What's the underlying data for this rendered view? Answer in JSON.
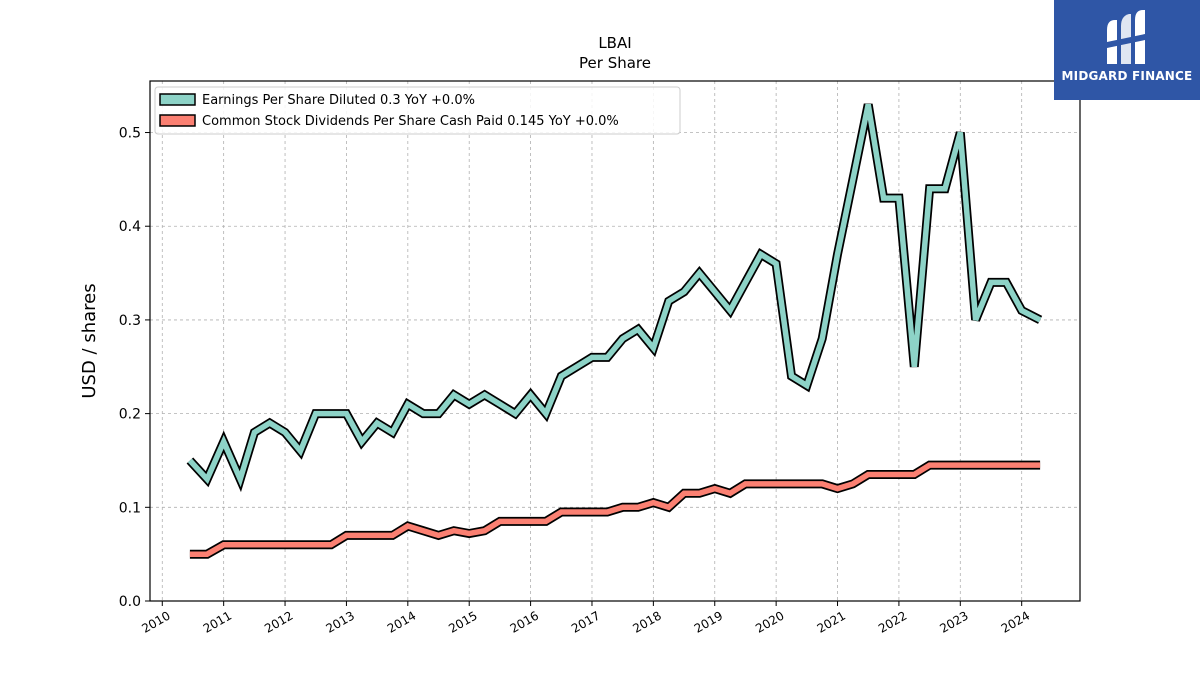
{
  "brand": {
    "name": "MIDGARD FINANCE",
    "bg": "#2f56a6",
    "icon": "midgard-logo-icon"
  },
  "chart_data": {
    "type": "line",
    "title": "LBAI",
    "subtitle": "Per  Share",
    "ylabel": "USD / shares",
    "xlabel": "",
    "xlim": [
      2009.8,
      2024.95
    ],
    "ylim": [
      0,
      0.555
    ],
    "yticks": [
      0.0,
      0.1,
      0.2,
      0.3,
      0.4,
      0.5
    ],
    "ytick_labels": [
      "0.0",
      "0.1",
      "0.2",
      "0.3",
      "0.4",
      "0.5"
    ],
    "xticks": [
      2010,
      2011,
      2012,
      2013,
      2014,
      2015,
      2016,
      2017,
      2018,
      2019,
      2020,
      2021,
      2022,
      2023,
      2024
    ],
    "xtick_labels": [
      "2010",
      "2011",
      "2012",
      "2013",
      "2014",
      "2015",
      "2016",
      "2017",
      "2018",
      "2019",
      "2020",
      "2021",
      "2022",
      "2023",
      "2024"
    ],
    "grid": true,
    "legend_position": "top-left",
    "series": [
      {
        "name": "Earnings Per Share Diluted  0.3 YoY +0.0%",
        "color": "#8dd3c7",
        "points": [
          [
            2010.45,
            0.15
          ],
          [
            2010.73,
            0.13
          ],
          [
            2011.0,
            0.17
          ],
          [
            2011.27,
            0.13
          ],
          [
            2011.5,
            0.18
          ],
          [
            2011.75,
            0.19
          ],
          [
            2012.0,
            0.18
          ],
          [
            2012.25,
            0.16
          ],
          [
            2012.5,
            0.2
          ],
          [
            2012.75,
            0.2
          ],
          [
            2013.0,
            0.2
          ],
          [
            2013.25,
            0.17
          ],
          [
            2013.5,
            0.19
          ],
          [
            2013.75,
            0.18
          ],
          [
            2014.0,
            0.21
          ],
          [
            2014.25,
            0.2
          ],
          [
            2014.5,
            0.2
          ],
          [
            2014.75,
            0.22
          ],
          [
            2015.0,
            0.21
          ],
          [
            2015.25,
            0.22
          ],
          [
            2015.5,
            0.21
          ],
          [
            2015.75,
            0.2
          ],
          [
            2016.0,
            0.22
          ],
          [
            2016.25,
            0.2
          ],
          [
            2016.5,
            0.24
          ],
          [
            2016.75,
            0.25
          ],
          [
            2017.0,
            0.26
          ],
          [
            2017.25,
            0.26
          ],
          [
            2017.5,
            0.28
          ],
          [
            2017.75,
            0.29
          ],
          [
            2018.0,
            0.27
          ],
          [
            2018.25,
            0.32
          ],
          [
            2018.5,
            0.33
          ],
          [
            2018.75,
            0.35
          ],
          [
            2019.0,
            0.33
          ],
          [
            2019.25,
            0.31
          ],
          [
            2019.5,
            0.34
          ],
          [
            2019.75,
            0.37
          ],
          [
            2020.0,
            0.36
          ],
          [
            2020.25,
            0.24
          ],
          [
            2020.5,
            0.23
          ],
          [
            2020.75,
            0.28
          ],
          [
            2021.0,
            0.37
          ],
          [
            2021.25,
            0.45
          ],
          [
            2021.5,
            0.53
          ],
          [
            2021.75,
            0.43
          ],
          [
            2022.0,
            0.43
          ],
          [
            2022.25,
            0.25
          ],
          [
            2022.5,
            0.44
          ],
          [
            2022.75,
            0.44
          ],
          [
            2023.0,
            0.5
          ],
          [
            2023.25,
            0.3
          ],
          [
            2023.5,
            0.34
          ],
          [
            2023.75,
            0.34
          ],
          [
            2024.0,
            0.31
          ],
          [
            2024.3,
            0.3
          ]
        ]
      },
      {
        "name": "Common Stock Dividends Per Share Cash Paid  0.145 YoY +0.0%",
        "color": "#fb8072",
        "points": [
          [
            2010.45,
            0.05
          ],
          [
            2010.73,
            0.05
          ],
          [
            2011.0,
            0.06
          ],
          [
            2011.25,
            0.06
          ],
          [
            2011.5,
            0.06
          ],
          [
            2011.75,
            0.06
          ],
          [
            2012.0,
            0.06
          ],
          [
            2012.25,
            0.06
          ],
          [
            2012.5,
            0.06
          ],
          [
            2012.75,
            0.06
          ],
          [
            2013.0,
            0.07
          ],
          [
            2013.25,
            0.07
          ],
          [
            2013.5,
            0.07
          ],
          [
            2013.75,
            0.07
          ],
          [
            2014.0,
            0.08
          ],
          [
            2014.25,
            0.075
          ],
          [
            2014.5,
            0.07
          ],
          [
            2014.75,
            0.075
          ],
          [
            2015.0,
            0.072
          ],
          [
            2015.25,
            0.075
          ],
          [
            2015.5,
            0.085
          ],
          [
            2015.75,
            0.085
          ],
          [
            2016.0,
            0.085
          ],
          [
            2016.25,
            0.085
          ],
          [
            2016.5,
            0.095
          ],
          [
            2016.75,
            0.095
          ],
          [
            2017.0,
            0.095
          ],
          [
            2017.25,
            0.095
          ],
          [
            2017.5,
            0.1
          ],
          [
            2017.75,
            0.1
          ],
          [
            2018.0,
            0.105
          ],
          [
            2018.25,
            0.1
          ],
          [
            2018.5,
            0.115
          ],
          [
            2018.75,
            0.115
          ],
          [
            2019.0,
            0.12
          ],
          [
            2019.25,
            0.115
          ],
          [
            2019.5,
            0.125
          ],
          [
            2019.75,
            0.125
          ],
          [
            2020.0,
            0.125
          ],
          [
            2020.25,
            0.125
          ],
          [
            2020.5,
            0.125
          ],
          [
            2020.75,
            0.125
          ],
          [
            2021.0,
            0.12
          ],
          [
            2021.25,
            0.125
          ],
          [
            2021.5,
            0.135
          ],
          [
            2021.75,
            0.135
          ],
          [
            2022.0,
            0.135
          ],
          [
            2022.25,
            0.135
          ],
          [
            2022.5,
            0.145
          ],
          [
            2022.75,
            0.145
          ],
          [
            2023.0,
            0.145
          ],
          [
            2023.25,
            0.145
          ],
          [
            2023.5,
            0.145
          ],
          [
            2023.75,
            0.145
          ],
          [
            2024.0,
            0.145
          ],
          [
            2024.3,
            0.145
          ]
        ]
      }
    ]
  }
}
